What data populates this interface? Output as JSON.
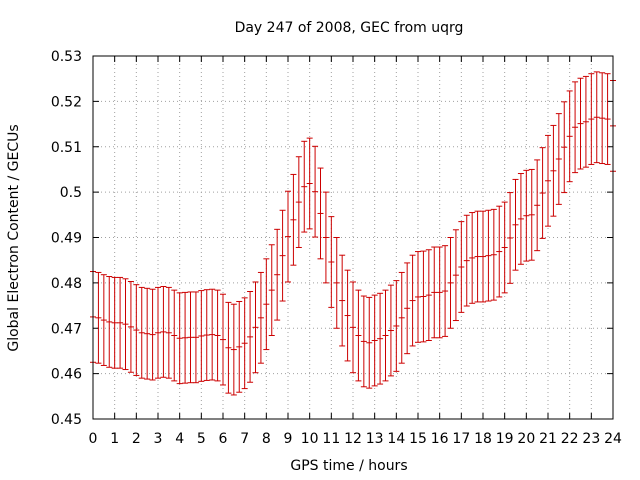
{
  "chart_data": {
    "type": "line",
    "title": "Day 247 of 2008, GEC from uqrg",
    "xlabel": "GPS time / hours",
    "ylabel": "Global Electron Content / GECUs",
    "xlim": [
      0,
      24
    ],
    "ylim": [
      0.45,
      0.53
    ],
    "x_ticks": [
      0,
      1,
      2,
      3,
      4,
      5,
      6,
      7,
      8,
      9,
      10,
      11,
      12,
      13,
      14,
      15,
      16,
      17,
      18,
      19,
      20,
      21,
      22,
      23,
      24
    ],
    "y_ticks": [
      0.45,
      0.46,
      0.47,
      0.48,
      0.49,
      0.5,
      0.51,
      0.52,
      0.53
    ],
    "y_tick_labels": [
      "0.45",
      "0.46",
      "0.47",
      "0.48",
      "0.49",
      "0.5",
      "0.51",
      "0.52",
      "0.53"
    ],
    "grid": true,
    "series_color": "#cc0000",
    "error_bar_halfwidth": 0.01,
    "series": [
      {
        "x": [
          0,
          0.25,
          0.5,
          0.75,
          1,
          1.25,
          1.5,
          1.75,
          2,
          2.25,
          2.5,
          2.75,
          3,
          3.25,
          3.5,
          3.75,
          4,
          4.25,
          4.5,
          4.75,
          5,
          5.25,
          5.5,
          5.75,
          6,
          6.25,
          6.5,
          6.75,
          7,
          7.25,
          7.5,
          7.75,
          8,
          8.25,
          8.5,
          8.75,
          9,
          9.25,
          9.5,
          9.75,
          10,
          10.25,
          10.5,
          10.75,
          11,
          11.25,
          11.5,
          11.75,
          12,
          12.25,
          12.5,
          12.75,
          13,
          13.25,
          13.5,
          13.75,
          14,
          14.25,
          14.5,
          14.75,
          15,
          15.25,
          15.5,
          15.75,
          16,
          16.25,
          16.5,
          16.75,
          17,
          17.25,
          17.5,
          17.75,
          18,
          18.25,
          18.5,
          18.75,
          19,
          19.25,
          19.5,
          19.75,
          20,
          20.25,
          20.5,
          20.75,
          21,
          21.25,
          21.5,
          21.75,
          22,
          22.25,
          22.5,
          22.75,
          23,
          23.25,
          23.5,
          23.75,
          24
        ],
        "values": [
          0.4725,
          0.4723,
          0.4718,
          0.4714,
          0.4712,
          0.4712,
          0.4709,
          0.4703,
          0.4696,
          0.469,
          0.4688,
          0.4686,
          0.469,
          0.4692,
          0.469,
          0.4684,
          0.4678,
          0.4679,
          0.468,
          0.468,
          0.4683,
          0.4685,
          0.4686,
          0.4684,
          0.4675,
          0.4657,
          0.4653,
          0.4659,
          0.4667,
          0.4681,
          0.4702,
          0.4723,
          0.4753,
          0.4784,
          0.4818,
          0.486,
          0.4902,
          0.4939,
          0.4978,
          0.5012,
          0.5019,
          0.5001,
          0.4953,
          0.49,
          0.4846,
          0.48,
          0.4761,
          0.4728,
          0.4702,
          0.4684,
          0.4671,
          0.4668,
          0.4673,
          0.4677,
          0.4684,
          0.4695,
          0.4705,
          0.4723,
          0.4744,
          0.4761,
          0.4769,
          0.477,
          0.4773,
          0.4779,
          0.4779,
          0.4782,
          0.48,
          0.4817,
          0.4835,
          0.4849,
          0.4855,
          0.4858,
          0.4858,
          0.486,
          0.4862,
          0.4869,
          0.4878,
          0.4899,
          0.4928,
          0.4941,
          0.4948,
          0.495,
          0.4971,
          0.4998,
          0.5025,
          0.5047,
          0.5073,
          0.5099,
          0.5123,
          0.5143,
          0.5151,
          0.5155,
          0.5161,
          0.5165,
          0.5163,
          0.5161,
          0.5146
        ]
      }
    ]
  }
}
